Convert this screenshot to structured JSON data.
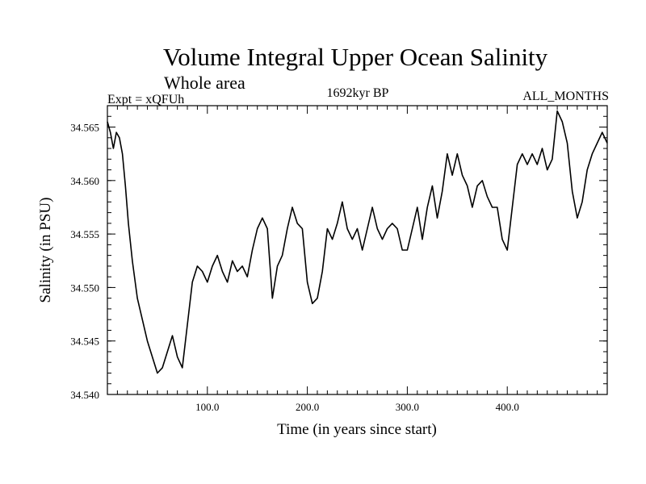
{
  "header": {
    "title": "Volume Integral Upper Ocean Salinity",
    "subtitle": "Whole area",
    "experiment": "Expt = xQFUh",
    "period": "1692kyr BP",
    "months": "ALL_MONTHS"
  },
  "chart_data": {
    "type": "line",
    "title": "Volume Integral Upper Ocean Salinity",
    "xlabel": "Time (in years since start)",
    "ylabel": "Salinity (in PSU)",
    "xlim": [
      0,
      500
    ],
    "ylim": [
      34.54,
      34.567
    ],
    "xticks": [
      100,
      200,
      300,
      400
    ],
    "xtick_labels": [
      "100.0",
      "200.0",
      "300.0",
      "400.0"
    ],
    "yticks": [
      34.54,
      34.545,
      34.55,
      34.555,
      34.56,
      34.565
    ],
    "ytick_labels": [
      "34.540",
      "34.545",
      "34.550",
      "34.555",
      "34.560",
      "34.565"
    ],
    "grid": false,
    "series": [
      {
        "name": "Salinity",
        "x": [
          0,
          3,
          6,
          9,
          12,
          15,
          18,
          21,
          25,
          30,
          35,
          40,
          45,
          50,
          55,
          60,
          65,
          70,
          75,
          80,
          85,
          90,
          95,
          100,
          105,
          110,
          115,
          120,
          125,
          130,
          135,
          140,
          145,
          150,
          155,
          160,
          165,
          170,
          175,
          180,
          185,
          190,
          195,
          200,
          205,
          210,
          215,
          220,
          225,
          230,
          235,
          240,
          245,
          250,
          255,
          260,
          265,
          270,
          275,
          280,
          285,
          290,
          295,
          300,
          305,
          310,
          315,
          320,
          325,
          330,
          335,
          340,
          345,
          350,
          355,
          360,
          365,
          370,
          375,
          380,
          385,
          390,
          395,
          400,
          405,
          410,
          415,
          420,
          425,
          430,
          435,
          440,
          445,
          450,
          455,
          460,
          465,
          470,
          475,
          480,
          485,
          490,
          495,
          500
        ],
        "y": [
          34.5655,
          34.5645,
          34.563,
          34.5645,
          34.564,
          34.5625,
          34.5595,
          34.556,
          34.5525,
          34.549,
          34.547,
          34.545,
          34.5435,
          34.542,
          34.5425,
          34.544,
          34.5455,
          34.5435,
          34.5425,
          34.5465,
          34.5505,
          34.552,
          34.5515,
          34.5505,
          34.552,
          34.553,
          34.5515,
          34.5505,
          34.5525,
          34.5515,
          34.552,
          34.551,
          34.5535,
          34.5555,
          34.5565,
          34.5555,
          34.549,
          34.552,
          34.553,
          34.5555,
          34.5575,
          34.556,
          34.5555,
          34.5505,
          34.5485,
          34.549,
          34.5515,
          34.5555,
          34.5545,
          34.556,
          34.558,
          34.5555,
          34.5545,
          34.5555,
          34.5535,
          34.5555,
          34.5575,
          34.5555,
          34.5545,
          34.5555,
          34.556,
          34.5555,
          34.5535,
          34.5535,
          34.5555,
          34.5575,
          34.5545,
          34.5575,
          34.5595,
          34.5565,
          34.559,
          34.5625,
          34.5605,
          34.5625,
          34.5605,
          34.5595,
          34.5575,
          34.5595,
          34.56,
          34.5585,
          34.5575,
          34.5575,
          34.5545,
          34.5535,
          34.5575,
          34.5615,
          34.5625,
          34.5615,
          34.5625,
          34.5615,
          34.563,
          34.561,
          34.562,
          34.5665,
          34.5655,
          34.5635,
          34.559,
          34.5565,
          34.558,
          34.561,
          34.5625,
          34.5635,
          34.5645,
          34.5635
        ]
      }
    ]
  }
}
